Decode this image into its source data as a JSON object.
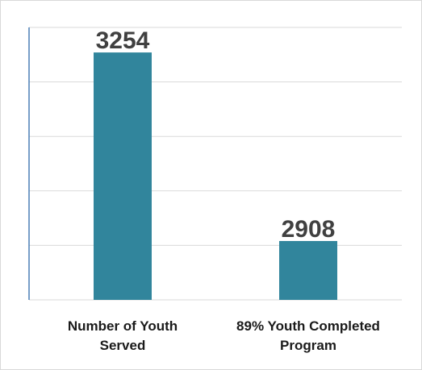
{
  "colors": {
    "bar": "#31859c",
    "grid": "#d9d9d9",
    "axis": "#4a7fb5"
  },
  "chart_data": {
    "type": "bar",
    "title": "",
    "xlabel": "",
    "ylabel": "",
    "categories": [
      [
        "Number of Youth",
        "Served"
      ],
      [
        "89% Youth Completed",
        "Program"
      ]
    ],
    "values": [
      3254,
      2908
    ],
    "data_labels": [
      "3254",
      "2908"
    ],
    "ylim": [
      2800,
      3300
    ],
    "gridlines": [
      2800,
      2900,
      3000,
      3100,
      3200,
      3300
    ],
    "grid": true,
    "legend": "none"
  }
}
